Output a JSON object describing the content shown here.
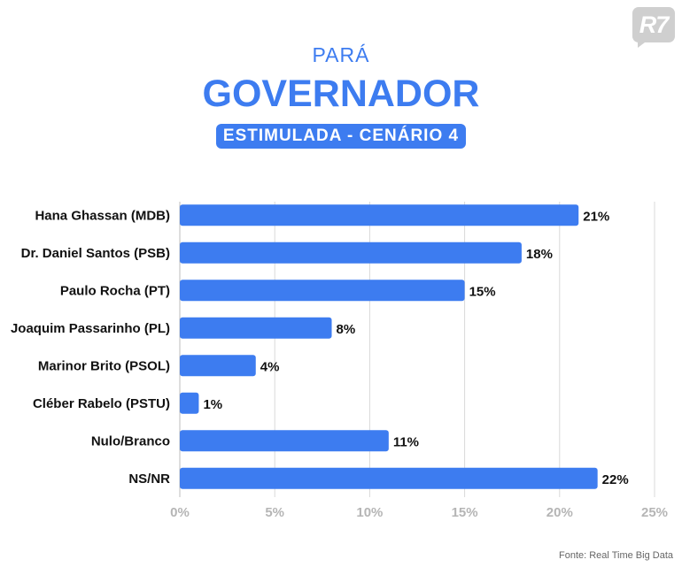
{
  "logo": {
    "text": "R7"
  },
  "header": {
    "kicker": "PARÁ",
    "title": "GOVERNADOR",
    "subtitle": "ESTIMULADA - CENÁRIO 4"
  },
  "source": "Fonte: Real Time Big Data",
  "colors": {
    "bar": "#3d7cf0",
    "grid": "#d9d9d9",
    "tick": "#b5b5b5"
  },
  "chart_data": {
    "type": "bar",
    "orientation": "horizontal",
    "categories": [
      "Hana Ghassan (MDB)",
      "Dr. Daniel Santos (PSB)",
      "Paulo Rocha (PT)",
      "Joaquim Passarinho (PL)",
      "Marinor Brito (PSOL)",
      "Cléber Rabelo (PSTU)",
      "Nulo/Branco",
      "NS/NR"
    ],
    "values": [
      21,
      18,
      15,
      8,
      4,
      1,
      11,
      22
    ],
    "data_labels": [
      "21%",
      "18%",
      "15%",
      "8%",
      "4%",
      "1%",
      "11%",
      "22%"
    ],
    "xlim": [
      0,
      25
    ],
    "xticks": [
      0,
      5,
      10,
      15,
      20,
      25
    ],
    "xtick_labels": [
      "0%",
      "5%",
      "10%",
      "15%",
      "20%",
      "25%"
    ],
    "grid": true
  }
}
